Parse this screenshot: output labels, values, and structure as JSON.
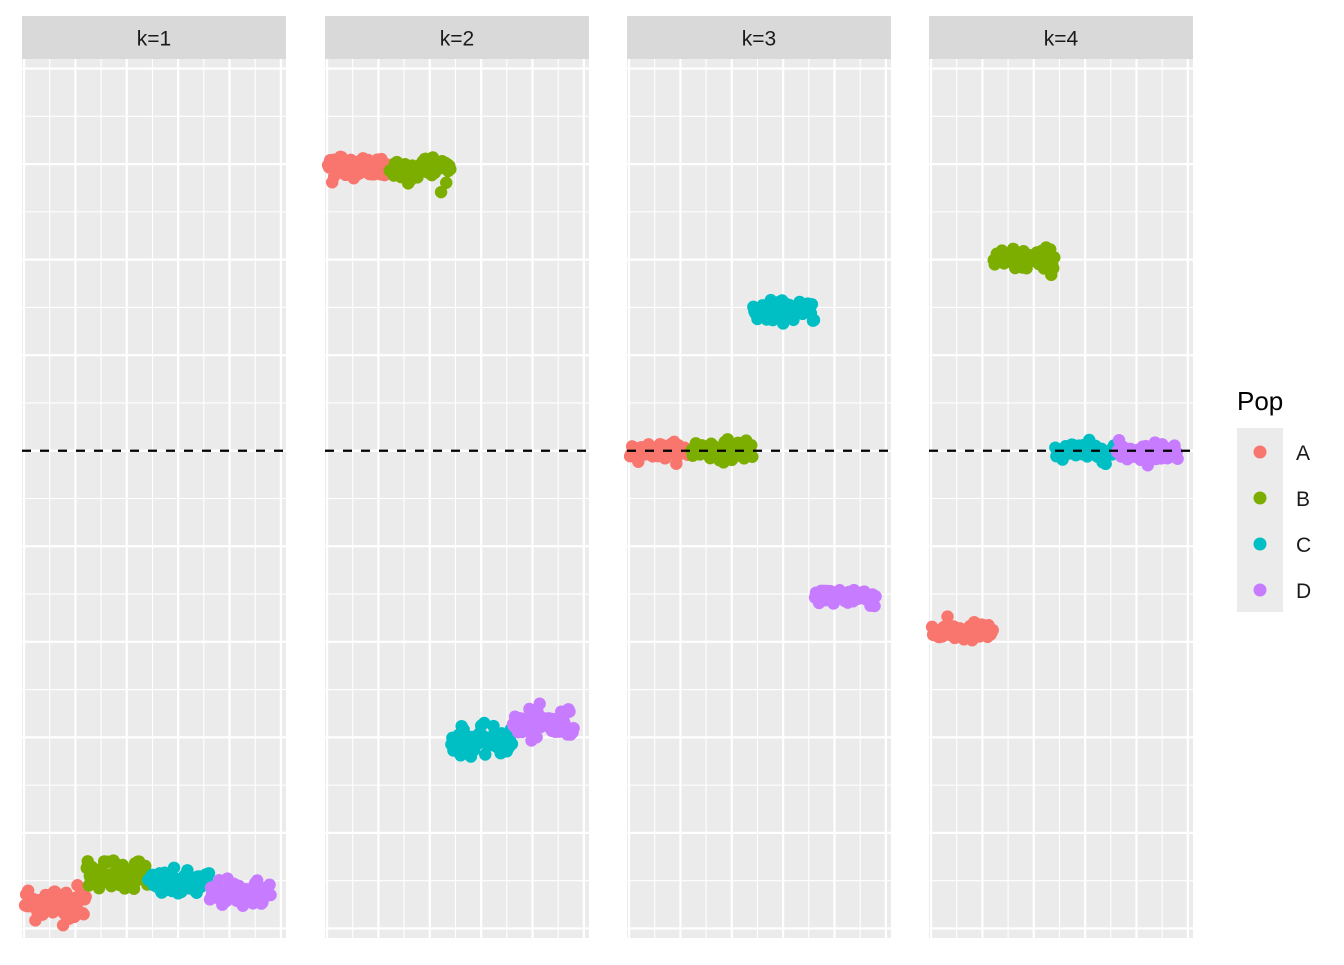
{
  "chart_data": {
    "type": "scatter",
    "facet_variable_labels": [
      "k=1",
      "k=2",
      "k=3",
      "k=4"
    ],
    "xlabel": "",
    "ylabel": "",
    "y_range": [
      -5.1,
      4.1
    ],
    "x_range": [
      -2,
      255
    ],
    "reference_line": {
      "y": 0,
      "style": "dashed",
      "color": "#000000"
    },
    "grid": true,
    "legend": {
      "title": "Pop",
      "position": "right",
      "entries": [
        {
          "label": "A",
          "color": "#F8766D"
        },
        {
          "label": "B",
          "color": "#7CAE00"
        },
        {
          "label": "C",
          "color": "#00BFC4"
        },
        {
          "label": "D",
          "color": "#C77CFF"
        }
      ]
    },
    "panels": [
      {
        "label": "k=1",
        "groups": [
          {
            "pop": "A",
            "x_start": 1,
            "x_end": 60,
            "y_center": -4.73,
            "spread": 0.09
          },
          {
            "pop": "B",
            "x_start": 61,
            "x_end": 120,
            "y_center": -4.42,
            "spread": 0.08
          },
          {
            "pop": "C",
            "x_start": 121,
            "x_end": 180,
            "y_center": -4.54,
            "spread": 0.07
          },
          {
            "pop": "D",
            "x_start": 181,
            "x_end": 240,
            "y_center": -4.63,
            "spread": 0.07
          }
        ]
      },
      {
        "label": "k=2",
        "groups": [
          {
            "pop": "A",
            "x_start": 1,
            "x_end": 60,
            "y_center": 2.97,
            "spread": 0.07
          },
          {
            "pop": "B",
            "x_start": 61,
            "x_end": 120,
            "y_center": 2.95,
            "spread": 0.07
          },
          {
            "pop": "C",
            "x_start": 121,
            "x_end": 180,
            "y_center": -3.04,
            "spread": 0.07
          },
          {
            "pop": "D",
            "x_start": 181,
            "x_end": 240,
            "y_center": -2.87,
            "spread": 0.08
          }
        ]
      },
      {
        "label": "k=3",
        "groups": [
          {
            "pop": "A",
            "x_start": 1,
            "x_end": 60,
            "y_center": 0.0,
            "spread": 0.04
          },
          {
            "pop": "B",
            "x_start": 61,
            "x_end": 120,
            "y_center": 0.01,
            "spread": 0.05
          },
          {
            "pop": "C",
            "x_start": 121,
            "x_end": 180,
            "y_center": 1.46,
            "spread": 0.05
          },
          {
            "pop": "D",
            "x_start": 181,
            "x_end": 240,
            "y_center": -1.52,
            "spread": 0.05
          }
        ]
      },
      {
        "label": "k=4",
        "groups": [
          {
            "pop": "A",
            "x_start": 1,
            "x_end": 60,
            "y_center": -1.9,
            "spread": 0.05
          },
          {
            "pop": "B",
            "x_start": 61,
            "x_end": 120,
            "y_center": 2.0,
            "spread": 0.06
          },
          {
            "pop": "C",
            "x_start": 121,
            "x_end": 180,
            "y_center": -0.01,
            "spread": 0.05
          },
          {
            "pop": "D",
            "x_start": 181,
            "x_end": 240,
            "y_center": -0.01,
            "spread": 0.05
          }
        ]
      }
    ]
  }
}
